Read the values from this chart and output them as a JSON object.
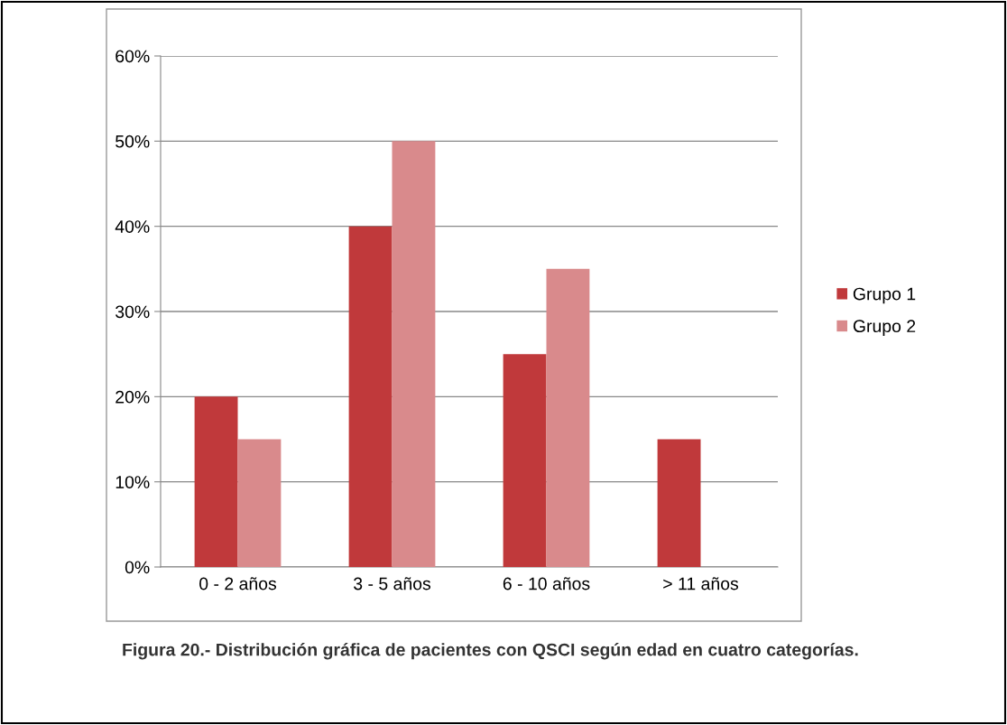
{
  "chart_data": {
    "type": "bar",
    "categories": [
      "0 - 2 años",
      "3 - 5 años",
      "6 - 10 años",
      "> 11 años"
    ],
    "series": [
      {
        "name": "Grupo 1",
        "color": "#c0393b",
        "values": [
          20,
          40,
          25,
          15
        ]
      },
      {
        "name": "Grupo 2",
        "color": "#d98a8c",
        "values": [
          15,
          50,
          35,
          null
        ]
      }
    ],
    "ylim": [
      0,
      60
    ],
    "yticks": [
      {
        "value": 0,
        "label": "0%"
      },
      {
        "value": 10,
        "label": "10%"
      },
      {
        "value": 20,
        "label": "20%"
      },
      {
        "value": 30,
        "label": "30%"
      },
      {
        "value": 40,
        "label": "40%"
      },
      {
        "value": 50,
        "label": "50%"
      },
      {
        "value": 60,
        "label": "60%"
      }
    ],
    "grid": "y",
    "legend": "right",
    "annotations": [
      "Figura 20.- Distribución gráfica de pacientes con QSCI según edad en cuatro categorías."
    ]
  }
}
